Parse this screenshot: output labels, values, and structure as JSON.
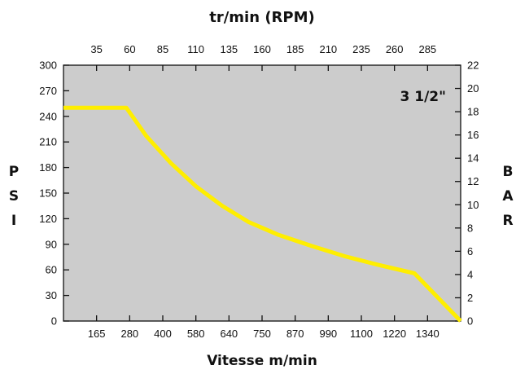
{
  "chart_data": {
    "type": "line",
    "title_top_axis": "tr/min (RPM)",
    "xlabel": "Vitesse m/min",
    "ylabel_left": "PSI",
    "ylabel_right": "BAR",
    "annotation": "3 1/2\"",
    "x_top_ticks": [
      "35",
      "60",
      "85",
      "110",
      "135",
      "160",
      "185",
      "210",
      "235",
      "260",
      "285"
    ],
    "x_bottom_ticks": [
      "165",
      "280",
      "400",
      "580",
      "640",
      "750",
      "870",
      "990",
      "1100",
      "1220",
      "1340"
    ],
    "y_left_ticks": [
      "0",
      "30",
      "60",
      "90",
      "120",
      "150",
      "180",
      "210",
      "240",
      "270",
      "300"
    ],
    "y_left_lim": [
      0,
      300
    ],
    "y_right_ticks": [
      "0",
      "2",
      "4",
      "6",
      "8",
      "10",
      "12",
      "14",
      "16",
      "18",
      "20",
      "22"
    ],
    "y_right_lim": [
      0,
      22
    ],
    "x_lim": [
      0,
      12
    ],
    "x_note": "x given in bottom tick-slot units: slot 0 = left edge, slots 1..11 = labels 165..1340, slot 12 = right edge",
    "series": [
      {
        "color": "#ffee00",
        "points": [
          [
            0.0,
            250
          ],
          [
            1.9,
            250
          ],
          [
            2.5,
            217
          ],
          [
            3.25,
            185
          ],
          [
            4.0,
            158
          ],
          [
            4.8,
            135
          ],
          [
            5.6,
            116
          ],
          [
            6.5,
            101
          ],
          [
            7.5,
            88
          ],
          [
            8.5,
            76
          ],
          [
            9.5,
            66
          ],
          [
            10.6,
            56
          ],
          [
            12.0,
            0
          ]
        ]
      }
    ],
    "background": "#cccccc",
    "grid": false
  }
}
